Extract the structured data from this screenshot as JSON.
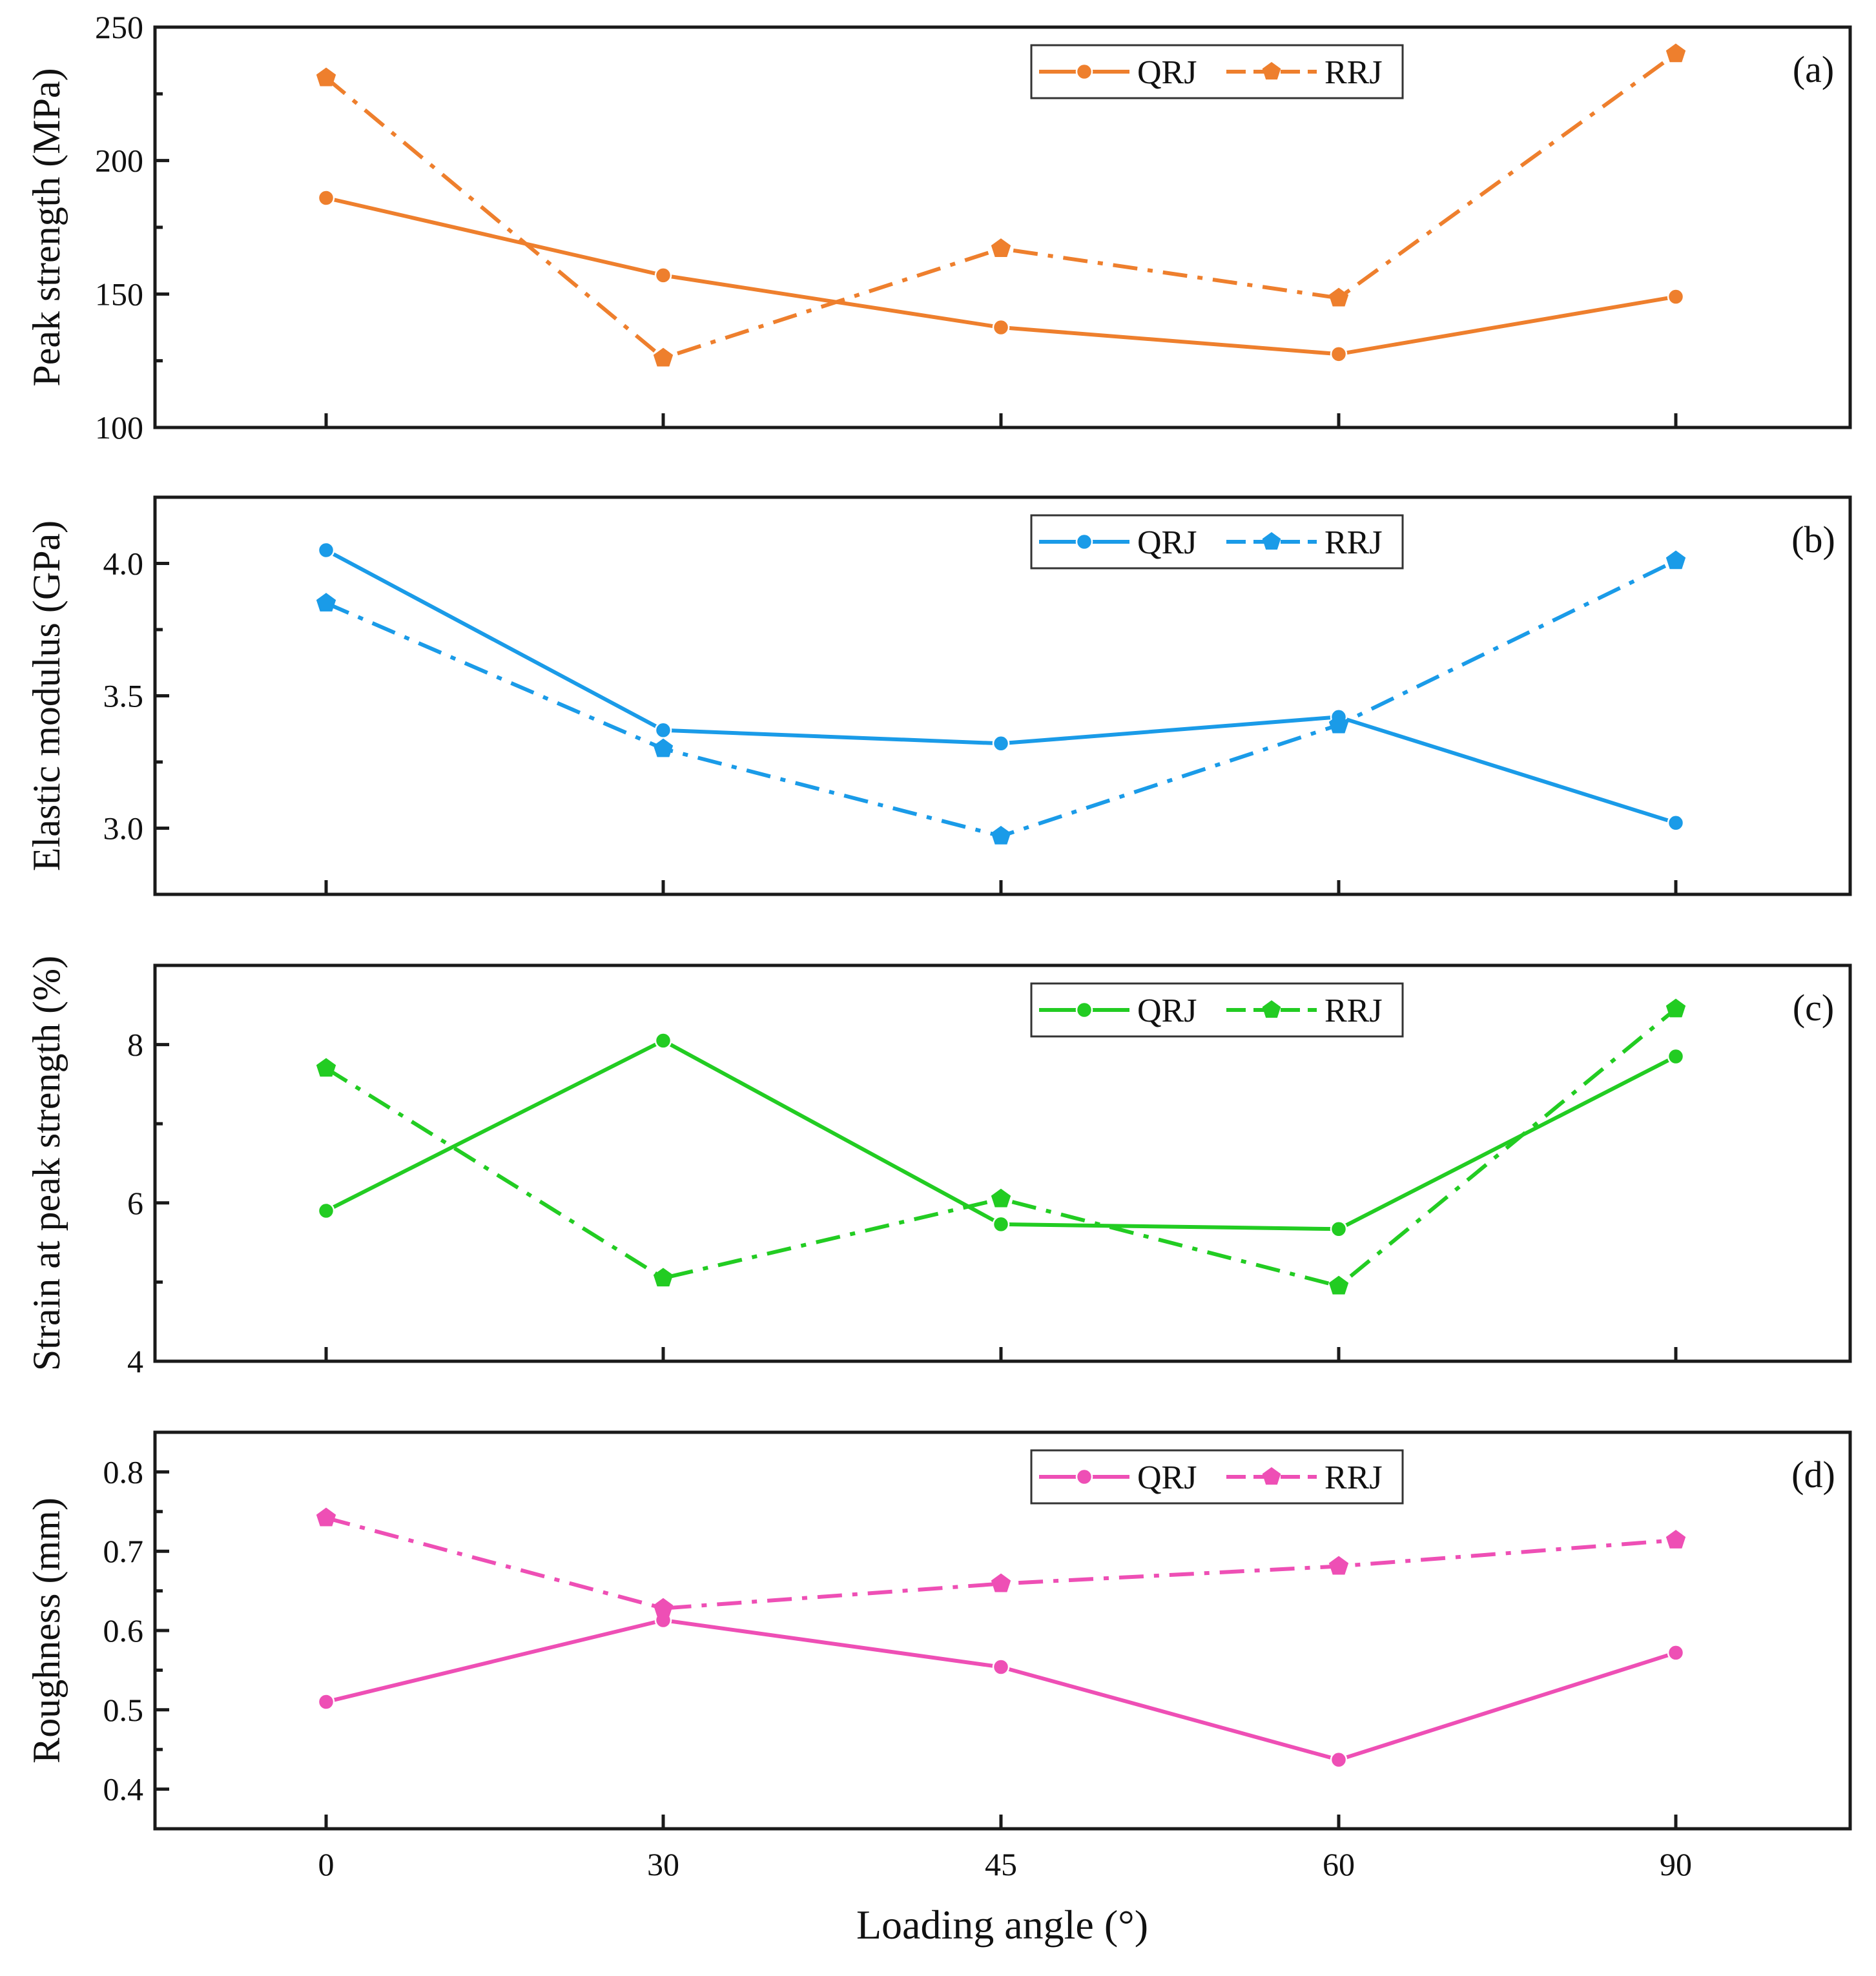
{
  "figure": {
    "xlabel": "Loading angle (°)"
  },
  "chart_data": [
    {
      "type": "line",
      "panel": "(a)",
      "color": "#EE7F2D",
      "categories": [
        "0",
        "30",
        "45",
        "60",
        "90"
      ],
      "ylabel": "Peak strength (MPa)",
      "ylim": [
        100,
        250
      ],
      "yticks": [
        100,
        150,
        200,
        250
      ],
      "ytick_labels": [
        "100",
        "150",
        "200",
        "250"
      ],
      "legend": "top-center",
      "series": [
        {
          "name": "QRJ",
          "marker": "circle",
          "style": "solid",
          "values": [
            186,
            157,
            137.5,
            127.5,
            149
          ]
        },
        {
          "name": "RRJ",
          "marker": "pentagon",
          "style": "dashdot",
          "values": [
            231,
            126,
            167,
            148.5,
            240
          ]
        }
      ]
    },
    {
      "type": "line",
      "panel": "(b)",
      "color": "#1A9BE8",
      "categories": [
        "0",
        "30",
        "45",
        "60",
        "90"
      ],
      "ylabel": "Elastic modulus (GPa)",
      "ylim": [
        2.75,
        4.25
      ],
      "yticks": [
        3.0,
        3.5,
        4.0
      ],
      "ytick_labels": [
        "3.0",
        "3.5",
        "4.0"
      ],
      "legend": "top-center",
      "series": [
        {
          "name": "QRJ",
          "marker": "circle",
          "style": "solid",
          "values": [
            4.05,
            3.37,
            3.32,
            3.42,
            3.02
          ]
        },
        {
          "name": "RRJ",
          "marker": "pentagon",
          "style": "dashdot",
          "values": [
            3.85,
            3.3,
            2.97,
            3.39,
            4.01
          ]
        }
      ]
    },
    {
      "type": "line",
      "panel": "(c)",
      "color": "#22CC22",
      "categories": [
        "0",
        "30",
        "45",
        "60",
        "90"
      ],
      "ylabel": "Strain at peak strength (%)",
      "ylim": [
        4,
        9
      ],
      "yticks": [
        4,
        6,
        8
      ],
      "ytick_labels": [
        "4",
        "6",
        "8"
      ],
      "legend": "top-center",
      "series": [
        {
          "name": "QRJ",
          "marker": "circle",
          "style": "solid",
          "values": [
            5.9,
            8.05,
            5.73,
            5.67,
            7.85
          ]
        },
        {
          "name": "RRJ",
          "marker": "pentagon",
          "style": "dashdot",
          "values": [
            7.7,
            5.05,
            6.05,
            4.95,
            8.45
          ]
        }
      ]
    },
    {
      "type": "line",
      "panel": "(d)",
      "color": "#EE4FB5",
      "categories": [
        "0",
        "30",
        "45",
        "60",
        "90"
      ],
      "ylabel": "Roughness (mm)",
      "ylim": [
        0.35,
        0.85
      ],
      "yticks": [
        0.4,
        0.5,
        0.6,
        0.7,
        0.8
      ],
      "ytick_labels": [
        "0.4",
        "0.5",
        "0.6",
        "0.7",
        "0.8"
      ],
      "legend": "top-center",
      "series": [
        {
          "name": "QRJ",
          "marker": "circle",
          "style": "solid",
          "values": [
            0.51,
            0.613,
            0.554,
            0.437,
            0.572
          ]
        },
        {
          "name": "RRJ",
          "marker": "pentagon",
          "style": "dashdot",
          "values": [
            0.742,
            0.628,
            0.659,
            0.681,
            0.714
          ]
        }
      ]
    }
  ]
}
